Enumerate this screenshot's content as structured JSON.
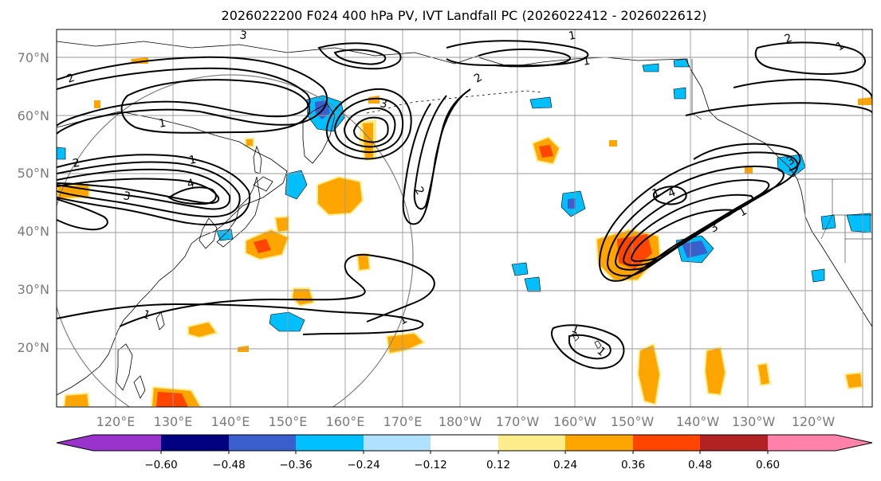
{
  "title": "2026022200 F024 400 hPa PV, IVT Landfall PC (2026022412 - 2026022612)",
  "latitude_labels": [
    "70°N",
    "60°N",
    "50°N",
    "40°N",
    "30°N",
    "20°N"
  ],
  "longitude_labels": [
    "120°E",
    "130°E",
    "140°E",
    "150°E",
    "160°E",
    "170°E",
    "180°W",
    "170°W",
    "160°W",
    "150°W",
    "140°W",
    "130°W",
    "120°W"
  ],
  "colorbar": {
    "tick_labels": [
      "−0.60",
      "−0.48",
      "−0.36",
      "−0.24",
      "−0.12",
      "0.12",
      "0.24",
      "0.36",
      "0.48",
      "0.60"
    ],
    "colors": [
      "#9933cc",
      "#000080",
      "#3a5fcd",
      "#00bfff",
      "#b0e2ff",
      "#ffffff",
      "#ffec8b",
      "#ffa500",
      "#ff4500",
      "#b22222",
      "#ff82ab"
    ]
  },
  "contour_labels": [
    "1",
    "2",
    "3",
    "4",
    "1",
    "2",
    "3",
    "1",
    "1",
    "1",
    "2",
    "2",
    "3",
    "1",
    "1",
    "2",
    "3",
    "4",
    "1",
    "1",
    "3",
    "1",
    "1"
  ],
  "colors": {
    "contour": "#000000",
    "grid": "#9a9a9a",
    "coast": "#000000",
    "circle": "#808080"
  }
}
